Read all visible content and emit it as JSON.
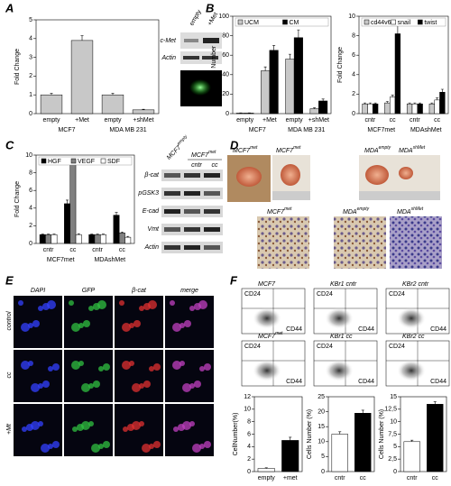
{
  "panel_letters": [
    "A",
    "B",
    "C",
    "D",
    "E",
    "F"
  ],
  "chart_data": [
    {
      "type": "bar",
      "ylabel": "Fold Change",
      "ylim": [
        0,
        5
      ],
      "yticks": [
        0,
        1,
        2,
        3,
        4,
        5
      ],
      "categories": [
        "empty",
        "+Met",
        "empty",
        "+shMet"
      ],
      "groups": [
        "MCF7",
        "MDA MB 231"
      ],
      "series": [
        {
          "color": "#c8c8c8",
          "values": [
            1,
            3.9,
            1,
            0.2
          ],
          "errors": [
            0.08,
            0.25,
            0.08,
            0.03
          ]
        }
      ]
    },
    {
      "type": "bar",
      "ylabel": "Cells Number",
      "ylim": [
        0,
        100
      ],
      "yticks": [
        0,
        20,
        40,
        60,
        80,
        100
      ],
      "categories": [
        "empty",
        "+Met",
        "empty",
        "+shMet"
      ],
      "groups": [
        "MCF7",
        "MDA MB 231"
      ],
      "series": [
        {
          "name": "UCM",
          "color": "#c8c8c8",
          "values": [
            0.5,
            44,
            56,
            5
          ],
          "errors": [
            0.3,
            4,
            5,
            1
          ]
        },
        {
          "name": "CM",
          "color": "#000000",
          "values": [
            0.5,
            65,
            78,
            13
          ],
          "errors": [
            0.3,
            5,
            8,
            2
          ]
        }
      ]
    },
    {
      "type": "bar",
      "ylabel": "Fold Change",
      "ylim": [
        0,
        10
      ],
      "yticks": [
        0,
        2,
        4,
        6,
        8,
        10
      ],
      "categories": [
        "cntr",
        "cc",
        "cntr",
        "cc"
      ],
      "groups": [
        "MCF7met",
        "MDAshMet"
      ],
      "series": [
        {
          "name": "cd44v6",
          "color": "#c8c8c8",
          "values": [
            1,
            1.1,
            1,
            1
          ],
          "errors": [
            0.1,
            0.15,
            0.1,
            0.1
          ]
        },
        {
          "name": "snail",
          "color": "#ffffff",
          "values": [
            1,
            1.7,
            1,
            1.4
          ],
          "errors": [
            0.1,
            0.2,
            0.1,
            0.2
          ]
        },
        {
          "name": "twist",
          "color": "#000000",
          "values": [
            1,
            8.2,
            1,
            2.2
          ],
          "errors": [
            0.1,
            1,
            0.1,
            0.3
          ]
        }
      ]
    },
    {
      "type": "bar",
      "ylabel": "Fold Change",
      "ylim": [
        0,
        10
      ],
      "yticks": [
        0,
        2,
        4,
        6,
        8,
        10
      ],
      "categories": [
        "cntr",
        "cc",
        "cntr",
        "cc"
      ],
      "groups": [
        "MCF7met",
        "MDAshMet"
      ],
      "series": [
        {
          "name": "HGF",
          "color": "#000000",
          "values": [
            1,
            4.5,
            1,
            3.2
          ],
          "errors": [
            0.05,
            0.4,
            0.05,
            0.3
          ]
        },
        {
          "name": "VEGF",
          "color": "#808080",
          "values": [
            1,
            9,
            1,
            1.2
          ],
          "errors": [
            0.05,
            0.6,
            0.05,
            0.1
          ]
        },
        {
          "name": "SDF",
          "color": "#ffffff",
          "values": [
            1,
            1,
            1,
            0.7
          ],
          "errors": [
            0.05,
            0.1,
            0.05,
            0.1
          ]
        }
      ]
    },
    {
      "type": "bar",
      "ylabel": "CellNumber(%)",
      "ylim": [
        0,
        12
      ],
      "yticks": [
        0,
        2,
        4,
        6,
        8,
        10,
        12
      ],
      "categories": [
        "empty",
        "+met"
      ],
      "series": [
        {
          "colors": [
            "#ffffff",
            "#000000"
          ],
          "values": [
            0.5,
            5
          ],
          "errors": [
            0.1,
            0.5
          ]
        }
      ]
    },
    {
      "type": "bar",
      "ylabel": "Cells Number (%)",
      "ylim": [
        0,
        25
      ],
      "yticks": [
        0,
        5,
        10,
        15,
        20,
        25
      ],
      "categories": [
        "cntr",
        "cc"
      ],
      "series": [
        {
          "colors": [
            "#ffffff",
            "#000000"
          ],
          "values": [
            12.5,
            19.5
          ],
          "errors": [
            0.8,
            1
          ]
        }
      ]
    },
    {
      "type": "bar",
      "ylabel": "Cells Number (%)",
      "ylim": [
        0,
        15
      ],
      "yticks": [
        0,
        {
          "value": 2.5,
          "label": "2,5"
        },
        5,
        {
          "value": 7.5,
          "label": "7,5"
        },
        10,
        {
          "value": 12.5,
          "label": "12,5"
        },
        15
      ],
      "categories": [
        "cntr",
        "cc"
      ],
      "series": [
        {
          "colors": [
            "#ffffff",
            "#000000"
          ],
          "values": [
            6,
            13.5
          ],
          "errors": [
            0.3,
            0.5
          ]
        }
      ]
    }
  ],
  "panel_a_blot": {
    "lanes": [
      "empty",
      "+Met"
    ],
    "rows": [
      "c-Met",
      "Actin"
    ]
  },
  "panel_c_blot": {
    "headers": [
      {
        "base": "MCF7",
        "sup": "empty"
      },
      {
        "base": "MCF7",
        "sup": "met"
      }
    ],
    "lanes": [
      "cntr",
      "cc"
    ],
    "rows": [
      "β-cat",
      "pGSK3",
      "E-cad",
      "Vmt",
      "Actin"
    ]
  },
  "panel_d": {
    "top_labels": [
      {
        "base": "MCF7",
        "sup": "met"
      },
      {
        "base": "MCF7",
        "sup": "met"
      },
      {
        "base": "MDA",
        "sup": "empty"
      },
      {
        "base": "MDA",
        "sup": "shMet"
      }
    ],
    "bottom_labels": [
      {
        "base": "MCF7",
        "sup": "met"
      },
      {
        "base": "MDA",
        "sup": "empty"
      },
      {
        "base": "MDA",
        "sup": "shMet"
      }
    ]
  },
  "panel_e": {
    "columns": [
      "DAPI",
      "GFP",
      "β-cat",
      "merge"
    ],
    "rows": [
      "control",
      "cc",
      "+Mt"
    ]
  },
  "panel_f": {
    "plots": [
      {
        "base": "MCF7"
      },
      {
        "base": "KBr1 cntr"
      },
      {
        "base": "KBr2 cntr"
      },
      {
        "base": "MCF7",
        "sup": "met"
      },
      {
        "base": "KBr1 cc"
      },
      {
        "base": "KBr2 cc"
      }
    ],
    "y_axis": "CD24",
    "x_axis": "CD44"
  }
}
